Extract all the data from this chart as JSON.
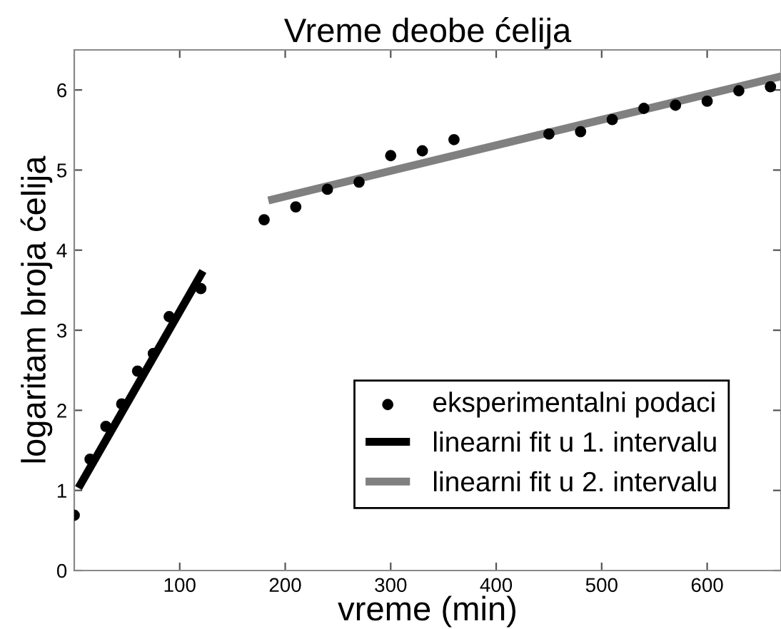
{
  "chart_data": {
    "type": "scatter",
    "title": "Vreme deobe ćelija",
    "xlabel": "vreme (min)",
    "ylabel": "logaritam broja ćelija",
    "xlim": [
      0,
      670
    ],
    "ylim": [
      0,
      6.5
    ],
    "xticks": [
      100,
      200,
      300,
      400,
      500,
      600
    ],
    "yticks": [
      0,
      1,
      2,
      3,
      4,
      5,
      6
    ],
    "grid": false,
    "legend": "bottom right",
    "series": [
      {
        "name": "eksperimentalni podaci",
        "color": "#000000",
        "marker": "circle",
        "x": [
          0,
          15,
          30,
          45,
          60,
          75,
          90,
          120,
          180,
          210,
          240,
          270,
          300,
          330,
          360,
          450,
          480,
          510,
          540,
          570,
          600,
          630,
          660
        ],
        "values": [
          0.69,
          1.39,
          1.8,
          2.08,
          2.49,
          2.71,
          3.17,
          3.52,
          4.38,
          4.54,
          4.76,
          4.85,
          5.18,
          5.24,
          5.38,
          5.45,
          5.48,
          5.63,
          5.77,
          5.81,
          5.86,
          5.99,
          6.04
        ]
      },
      {
        "name": "linearni fit u 1. intervalu",
        "type": "line",
        "color": "#000000",
        "line_style": "solid",
        "x": [
          4,
          122
        ],
        "values": [
          1.03,
          3.74
        ]
      },
      {
        "name": "linearni fit u 2. intervalu",
        "type": "line",
        "color": "#808080",
        "line_style": "solid",
        "x": [
          184,
          670
        ],
        "values": [
          4.62,
          6.17
        ]
      }
    ]
  }
}
